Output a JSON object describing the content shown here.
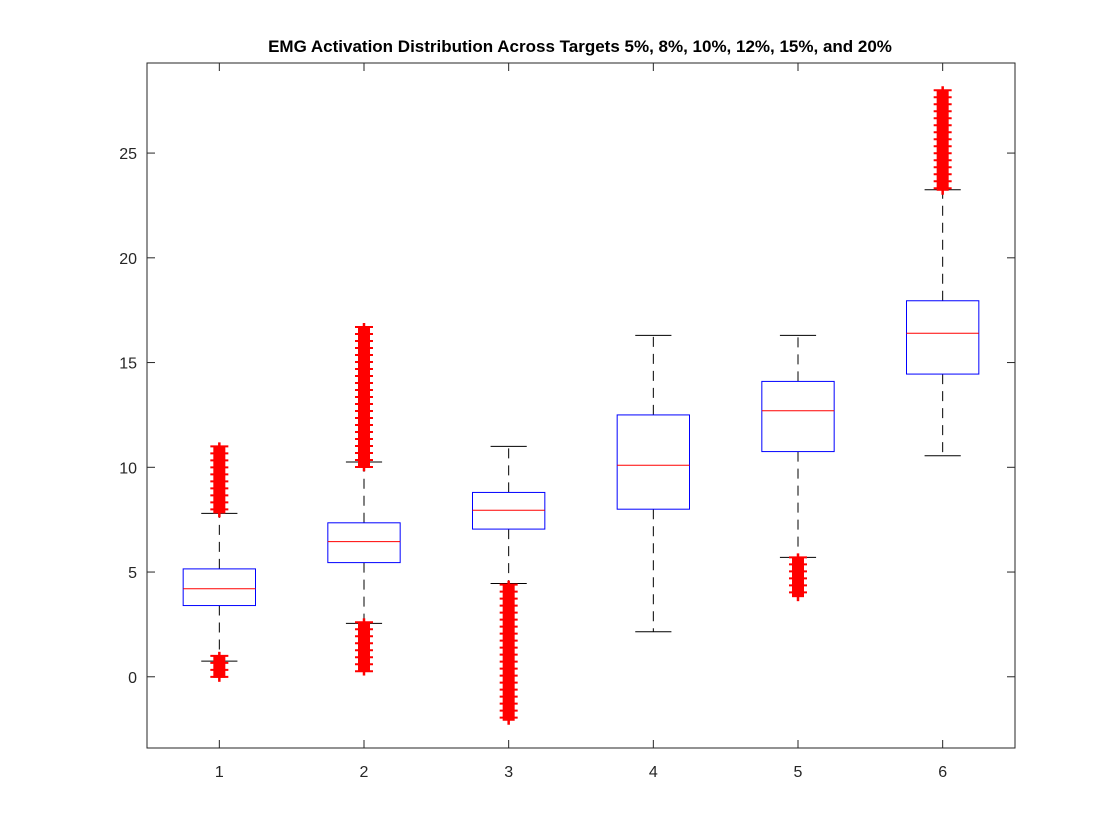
{
  "chart_data": {
    "type": "boxplot",
    "title": "EMG Activation Distribution Across Targets 5%, 8%, 10%, 12%, 15%, and 20%",
    "xlabel": "",
    "ylabel": "",
    "categories": [
      "1",
      "2",
      "3",
      "4",
      "5",
      "6"
    ],
    "xlim": [
      0.5,
      6.5
    ],
    "ylim": [
      -3.4,
      29.3
    ],
    "yticks": [
      0,
      5,
      10,
      15,
      20,
      25
    ],
    "grid": false,
    "boxes": [
      {
        "label": "1",
        "q1": 3.4,
        "median": 4.2,
        "q3": 5.15,
        "whisker_low": 0.75,
        "whisker_high": 7.8,
        "outliers_low": [
          -0.05,
          1.0
        ],
        "outliers_high": [
          7.8,
          11.0
        ]
      },
      {
        "label": "2",
        "q1": 5.45,
        "median": 6.45,
        "q3": 7.35,
        "whisker_low": 2.55,
        "whisker_high": 10.25,
        "outliers_low": [
          0.25,
          2.6
        ],
        "outliers_high": [
          10.0,
          16.7
        ]
      },
      {
        "label": "3",
        "q1": 7.05,
        "median": 7.95,
        "q3": 8.8,
        "whisker_low": 4.45,
        "whisker_high": 11.0,
        "outliers_low": [
          -2.1,
          4.4
        ],
        "outliers_high": []
      },
      {
        "label": "4",
        "q1": 8.0,
        "median": 10.1,
        "q3": 12.5,
        "whisker_low": 2.15,
        "whisker_high": 16.3,
        "outliers_low": [],
        "outliers_high": []
      },
      {
        "label": "5",
        "q1": 10.75,
        "median": 12.7,
        "q3": 14.1,
        "whisker_low": 5.7,
        "whisker_high": 16.3,
        "outliers_low": [
          3.8,
          5.7
        ],
        "outliers_high": []
      },
      {
        "label": "6",
        "q1": 14.45,
        "median": 16.4,
        "q3": 17.95,
        "whisker_low": 10.55,
        "whisker_high": 23.25,
        "outliers_low": [],
        "outliers_high": [
          23.2,
          28.0
        ]
      }
    ],
    "colors": {
      "box": "#0000ff",
      "median": "#ff0000",
      "whisker": "#000000",
      "outlier": "#ff0000",
      "axis": "#262626"
    }
  }
}
